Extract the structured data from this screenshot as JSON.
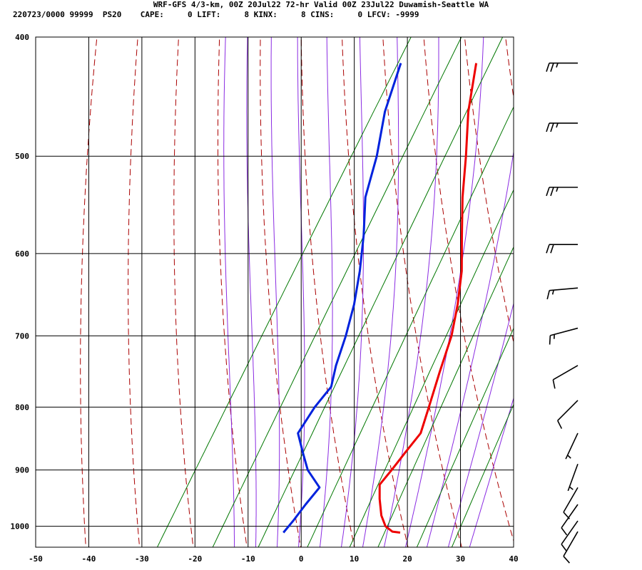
{
  "header": {
    "title": "WRF-GFS 4/3-km, 00Z 20Jul22 72-hr Valid 00Z 23Jul22 Duwamish-Seattle WA",
    "stats": "220723/0000 99999  PS20    CAPE:     0 LIFT:     8 KINX:     8 CINS:     0 LFCV: -9999"
  },
  "colors": {
    "temperature": "#ee0000",
    "dewpoint": "#0022dd",
    "dry_adiabat": "#aa0000",
    "moist_adiabat": "#8a2be2",
    "mixing_ratio": "#007700",
    "grid": "#000000"
  },
  "chart_data": {
    "type": "skew-t",
    "x_axis": {
      "label": "",
      "ticks": [
        -50,
        -40,
        -30,
        -20,
        -10,
        0,
        10,
        20,
        30,
        40
      ],
      "range": [
        -50,
        40
      ],
      "units": "°C"
    },
    "y_axis": {
      "label": "",
      "ticks": [
        400,
        500,
        600,
        700,
        800,
        900,
        1000
      ],
      "range": [
        400,
        1040
      ],
      "scale": "log",
      "units": "hPa"
    },
    "grid": true,
    "series": [
      {
        "key": "temperature",
        "points": [
          {
            "p": 420,
            "t": -21.8
          },
          {
            "p": 460,
            "t": -17.8
          },
          {
            "p": 500,
            "t": -13.2
          },
          {
            "p": 540,
            "t": -9.2
          },
          {
            "p": 580,
            "t": -5.0
          },
          {
            "p": 620,
            "t": -1.0
          },
          {
            "p": 660,
            "t": 2.0
          },
          {
            "p": 700,
            "t": 4.4
          },
          {
            "p": 750,
            "t": 6.3
          },
          {
            "p": 800,
            "t": 8.2
          },
          {
            "p": 840,
            "t": 9.6
          },
          {
            "p": 870,
            "t": 8.9
          },
          {
            "p": 900,
            "t": 8.3
          },
          {
            "p": 925,
            "t": 7.7
          },
          {
            "p": 950,
            "t": 9.3
          },
          {
            "p": 980,
            "t": 11.5
          },
          {
            "p": 1000,
            "t": 13.5
          },
          {
            "p": 1010,
            "t": 15.4
          },
          {
            "p": 1012,
            "t": 17.0
          }
        ]
      },
      {
        "key": "dewpoint",
        "points": [
          {
            "p": 420,
            "t": -36.0
          },
          {
            "p": 460,
            "t": -33.5
          },
          {
            "p": 500,
            "t": -30.0
          },
          {
            "p": 540,
            "t": -27.5
          },
          {
            "p": 580,
            "t": -23.5
          },
          {
            "p": 620,
            "t": -20.2
          },
          {
            "p": 660,
            "t": -17.5
          },
          {
            "p": 700,
            "t": -15.5
          },
          {
            "p": 740,
            "t": -14.0
          },
          {
            "p": 770,
            "t": -12.5
          },
          {
            "p": 800,
            "t": -13.3
          },
          {
            "p": 840,
            "t": -13.5
          },
          {
            "p": 870,
            "t": -10.5
          },
          {
            "p": 900,
            "t": -7.5
          },
          {
            "p": 930,
            "t": -3.3
          },
          {
            "p": 960,
            "t": -4.0
          },
          {
            "p": 990,
            "t": -4.5
          },
          {
            "p": 1012,
            "t": -5.0
          }
        ]
      }
    ],
    "background_lines": {
      "dry_adiabats_theta_K": [
        230,
        240,
        250,
        260,
        270,
        280,
        290,
        300,
        310,
        320,
        330,
        340,
        350,
        360
      ],
      "moist_adiabats_thetaE_C": [
        -12,
        -8,
        -4,
        0,
        4,
        8,
        12,
        16,
        20,
        24,
        28,
        32
      ],
      "mixing_ratio_lines_gkg": [
        0.4,
        1,
        2,
        4,
        7,
        10,
        16,
        24
      ]
    },
    "wind_barbs": [
      {
        "p": 420,
        "dir": 270,
        "speed_kt": 25
      },
      {
        "p": 470,
        "dir": 270,
        "speed_kt": 25
      },
      {
        "p": 530,
        "dir": 270,
        "speed_kt": 25
      },
      {
        "p": 590,
        "dir": 270,
        "speed_kt": 20
      },
      {
        "p": 640,
        "dir": 265,
        "speed_kt": 15
      },
      {
        "p": 690,
        "dir": 255,
        "speed_kt": 15
      },
      {
        "p": 740,
        "dir": 240,
        "speed_kt": 10
      },
      {
        "p": 790,
        "dir": 225,
        "speed_kt": 10
      },
      {
        "p": 840,
        "dir": 205,
        "speed_kt": 5
      },
      {
        "p": 890,
        "dir": 200,
        "speed_kt": 5
      },
      {
        "p": 930,
        "dir": 210,
        "speed_kt": 10
      },
      {
        "p": 960,
        "dir": 215,
        "speed_kt": 10
      },
      {
        "p": 990,
        "dir": 215,
        "speed_kt": 10
      },
      {
        "p": 1010,
        "dir": 210,
        "speed_kt": 10
      }
    ]
  }
}
